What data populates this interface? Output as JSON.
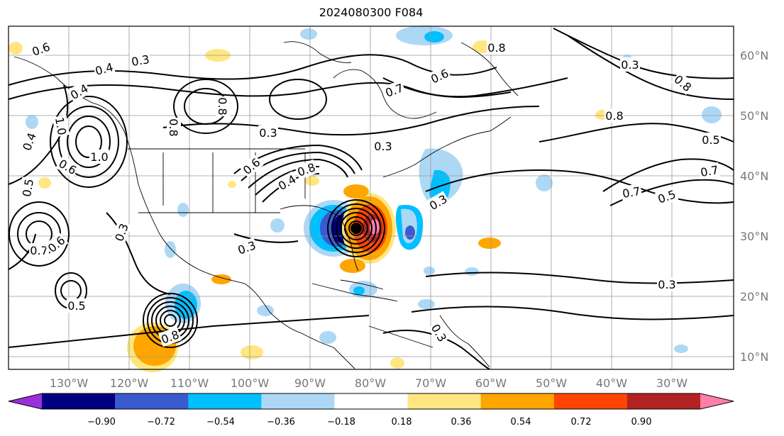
{
  "title": "2024080300 F084",
  "map": {
    "lon_labels": [
      "130°W",
      "120°W",
      "110°W",
      "100°W",
      "90°W",
      "80°W",
      "70°W",
      "60°W",
      "50°W",
      "40°W",
      "30°W"
    ],
    "lat_labels": [
      "60°N",
      "50°N",
      "40°N",
      "30°N",
      "20°N",
      "10°N"
    ],
    "contour_labels": [
      "0.6",
      "0.3",
      "0.4",
      "0.3",
      "0.8",
      "0.3",
      "0.7",
      "0.6",
      "0.8",
      "0.3",
      "0.8",
      "0.4",
      "1.0",
      "1.0",
      "0.6",
      "0.4",
      "0.5",
      "0.3",
      "0.3",
      "0.6",
      "0.8",
      "0.8",
      "0.3",
      "0.4",
      "0.3",
      "0.7",
      "0.6",
      "0.5",
      "0.8",
      "0.7",
      "0.5",
      "0.7",
      "0.5",
      "0.3",
      "0.8"
    ],
    "storm_centers": [
      "storm-atlantic-coast",
      "storm-eastern-pacific"
    ]
  },
  "colorbar": {
    "tick_labels": [
      "−0.90",
      "−0.72",
      "−0.54",
      "−0.36",
      "−0.18",
      "0.18",
      "0.36",
      "0.54",
      "0.72",
      "0.90"
    ],
    "colors": [
      "#9b30d9",
      "#000080",
      "#3a5ad0",
      "#00bfff",
      "#add8f5",
      "#ffffff",
      "#ffe680",
      "#ffa500",
      "#ff4500",
      "#b22222",
      "#ff7fa8"
    ]
  }
}
